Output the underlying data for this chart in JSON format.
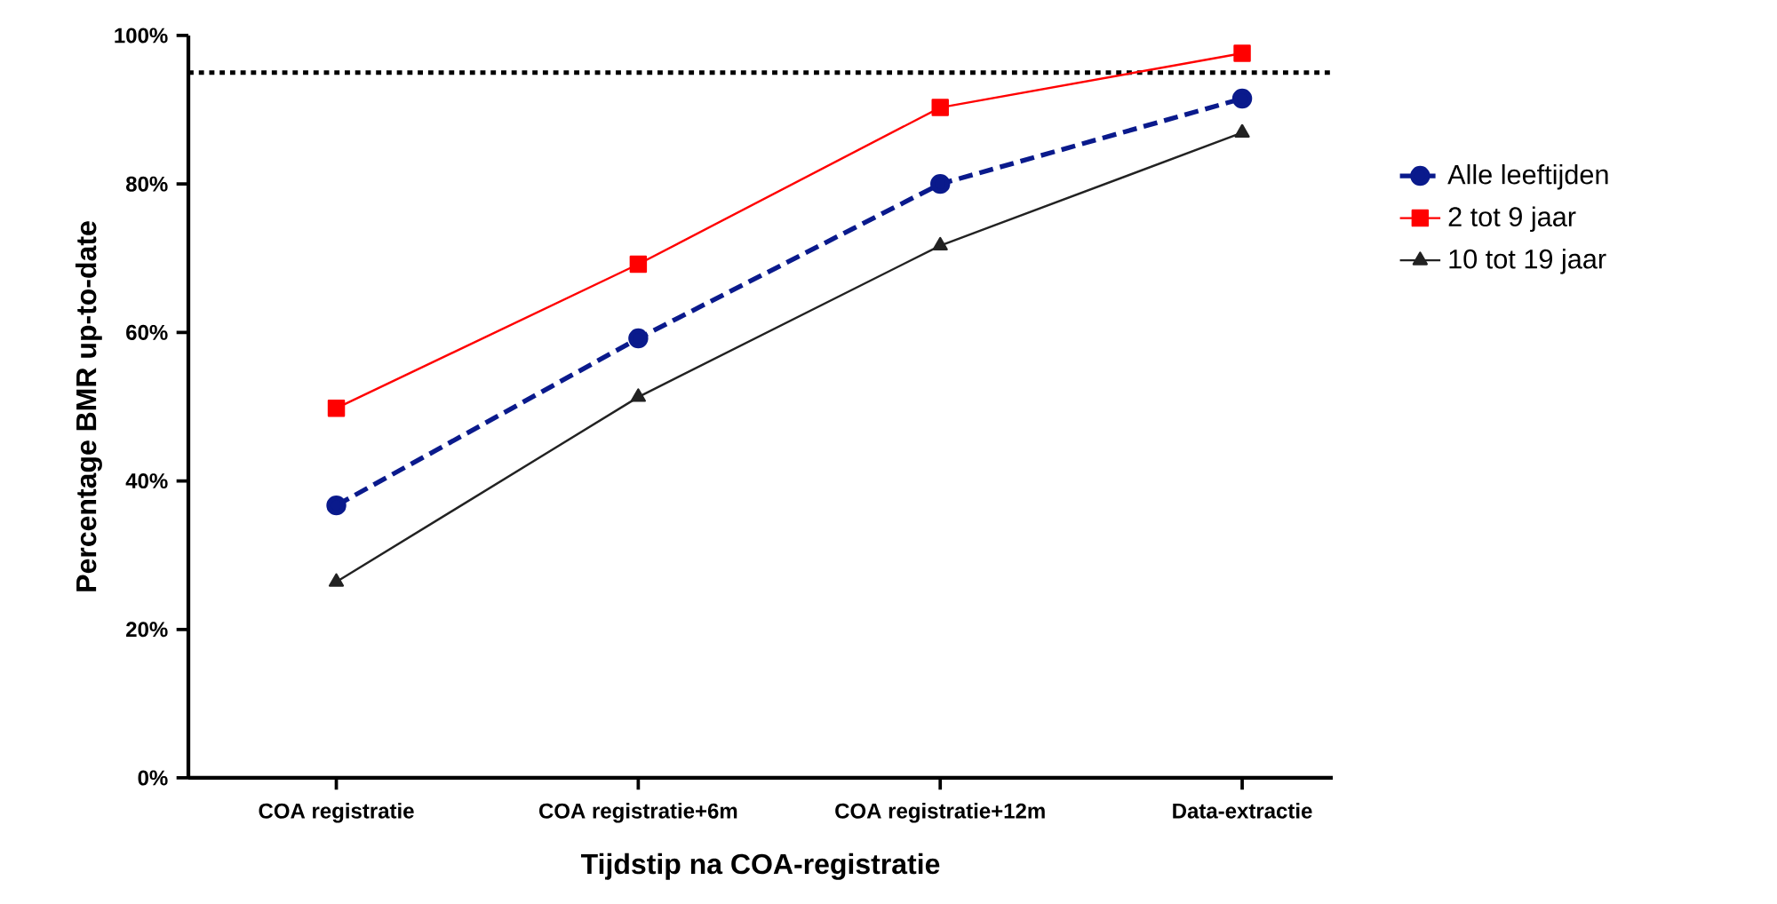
{
  "chart_data": {
    "type": "line",
    "xlabel": "Tijdstip na COA-registratie",
    "ylabel": "Percentage BMR up-to-date",
    "categories": [
      "COA registratie",
      "COA registratie+6m",
      "COA registratie+12m",
      "Data-extractie"
    ],
    "series": [
      {
        "name": "Alle leeftijden",
        "color": "#0a1a8c",
        "values": [
          36.7,
          59.2,
          80.0,
          91.5
        ],
        "marker": "circle",
        "line_style": "dashed"
      },
      {
        "name": "2 tot 9 jaar",
        "color": "#ff0000",
        "values": [
          49.8,
          69.2,
          90.3,
          97.6
        ],
        "marker": "square",
        "line_style": "solid"
      },
      {
        "name": "10 tot 19 jaar",
        "color": "#222222",
        "values": [
          26.4,
          51.3,
          71.7,
          86.9
        ],
        "marker": "triangle",
        "line_style": "solid"
      }
    ],
    "ylim": [
      0,
      100
    ],
    "yticks": [
      {
        "value": 0,
        "label": "0%"
      },
      {
        "value": 20,
        "label": "20%"
      },
      {
        "value": 40,
        "label": "40%"
      },
      {
        "value": 60,
        "label": "60%"
      },
      {
        "value": 80,
        "label": "80%"
      },
      {
        "value": 100,
        "label": "100%"
      }
    ],
    "ref_lines": [
      {
        "axis": "y",
        "value": 95,
        "line_style": "dotted",
        "color": "#000000"
      }
    ],
    "legend": "right",
    "grid": false
  }
}
